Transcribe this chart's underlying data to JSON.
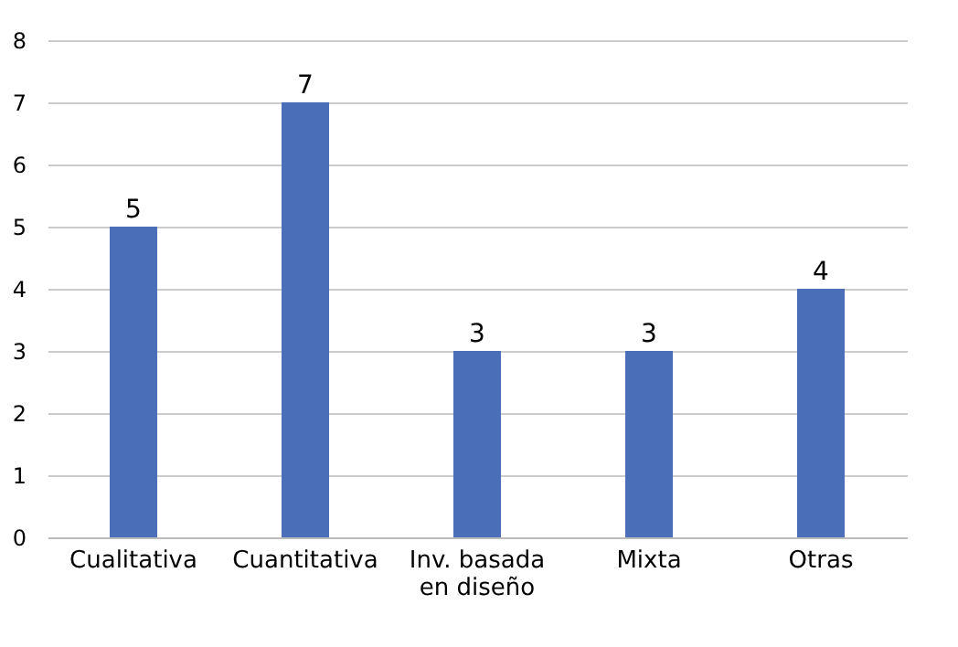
{
  "chart_data": {
    "type": "bar",
    "categories": [
      "Cualitativa",
      "Cuantitativa",
      "Inv. basada\nen diseño",
      "Mixta",
      "Otras"
    ],
    "values": [
      5,
      7,
      3,
      3,
      4
    ],
    "color": "#4a6fb8",
    "ylim": [
      0,
      8
    ],
    "yticks": [
      0,
      1,
      2,
      3,
      4,
      5,
      6,
      7,
      8
    ],
    "grid": "y",
    "data_labels": true
  }
}
